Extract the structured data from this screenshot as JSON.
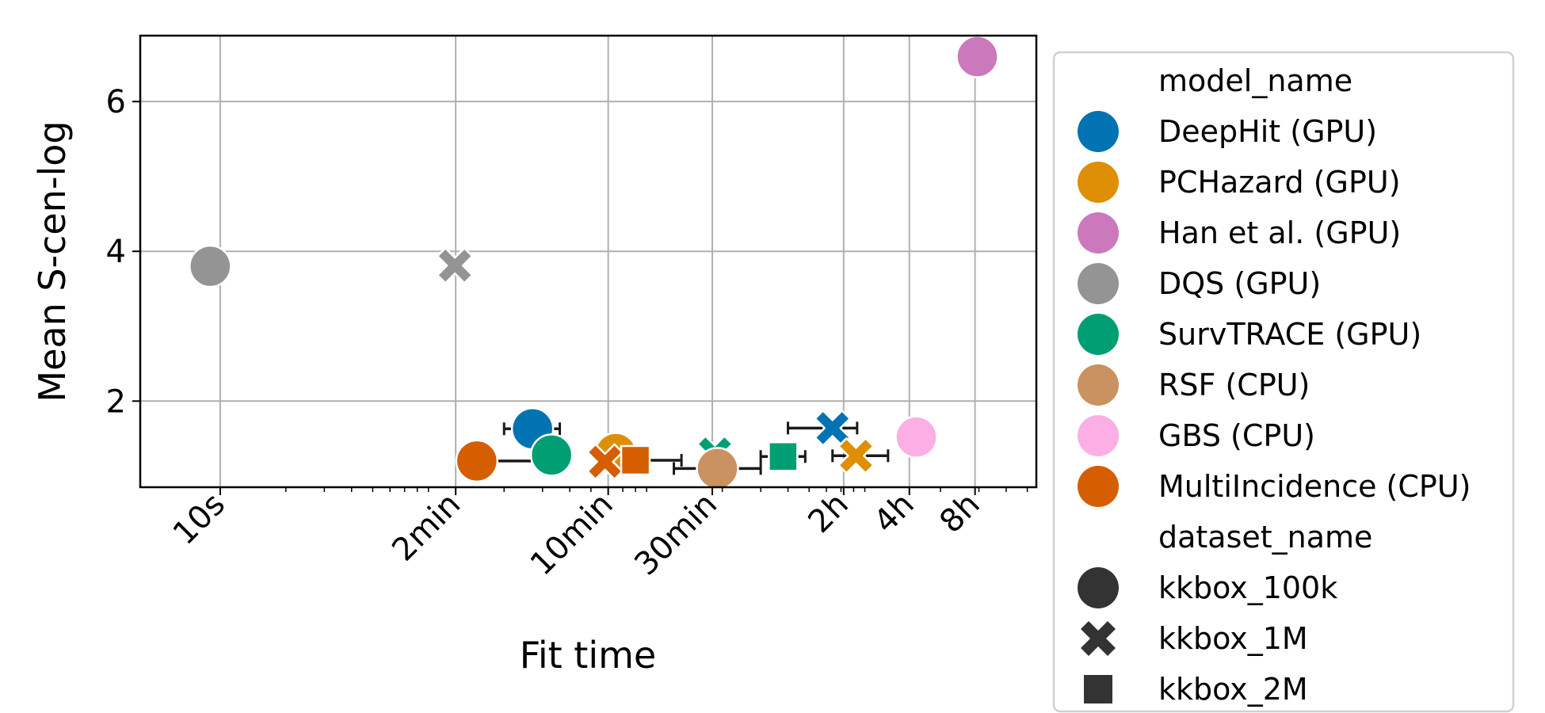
{
  "chart_data": {
    "type": "scatter",
    "title": "",
    "xlabel": "Fit time",
    "ylabel": "Mean S-cen-log",
    "x_scale": "log",
    "x_unit": "seconds",
    "xlim": [
      4.3,
      55000
    ],
    "ylim": [
      0.85,
      6.88
    ],
    "grid": true,
    "legend_position": "outside-right",
    "x_ticks": [
      {
        "value": 10,
        "label": "10s"
      },
      {
        "value": 120,
        "label": "2min"
      },
      {
        "value": 600,
        "label": "10min"
      },
      {
        "value": 1800,
        "label": "30min"
      },
      {
        "value": 7200,
        "label": "2h"
      },
      {
        "value": 14400,
        "label": "4h"
      },
      {
        "value": 28800,
        "label": "8h"
      }
    ],
    "y_ticks": [
      {
        "value": 2,
        "label": "2"
      },
      {
        "value": 4,
        "label": "4"
      },
      {
        "value": 6,
        "label": "6"
      }
    ],
    "legend": {
      "hue_title": "model_name",
      "style_title": "dataset_name",
      "models": [
        {
          "name": "DeepHit (GPU)",
          "color": "#0173b2"
        },
        {
          "name": "PCHazard (GPU)",
          "color": "#de8f05"
        },
        {
          "name": "Han et al. (GPU)",
          "color": "#cc78bc"
        },
        {
          "name": "DQS (GPU)",
          "color": "#949494"
        },
        {
          "name": "SurvTRACE (GPU)",
          "color": "#029e73"
        },
        {
          "name": "RSF (CPU)",
          "color": "#ca9161"
        },
        {
          "name": "GBS (CPU)",
          "color": "#fbafe4"
        },
        {
          "name": "MultiIncidence (CPU)",
          "color": "#d55e00"
        }
      ],
      "datasets": [
        {
          "name": "kkbox_100k",
          "marker": "circle"
        },
        {
          "name": "kkbox_1M",
          "marker": "x"
        },
        {
          "name": "kkbox_2M",
          "marker": "square"
        }
      ]
    },
    "points": [
      {
        "model": "DQS (GPU)",
        "dataset": "kkbox_100k",
        "x": 9,
        "y": 3.8
      },
      {
        "model": "DQS (GPU)",
        "dataset": "kkbox_1M",
        "x": 119,
        "y": 3.81
      },
      {
        "model": "Han et al. (GPU)",
        "dataset": "kkbox_100k",
        "x": 29500,
        "y": 6.6
      },
      {
        "model": "DeepHit (GPU)",
        "dataset": "kkbox_100k",
        "x": 270,
        "y": 1.63,
        "xerr": [
          200,
          360
        ]
      },
      {
        "model": "SurvTRACE (GPU)",
        "dataset": "kkbox_100k",
        "x": 330,
        "y": 1.28
      },
      {
        "model": "MultiIncidence (CPU)",
        "dataset": "kkbox_100k",
        "x": 150,
        "y": 1.2,
        "xerr": [
          130,
          330
        ]
      },
      {
        "model": "PCHazard (GPU)",
        "dataset": "kkbox_100k",
        "x": 650,
        "y": 1.3
      },
      {
        "model": "MultiIncidence (CPU)",
        "dataset": "kkbox_1M",
        "x": 580,
        "y": 1.19
      },
      {
        "model": "MultiIncidence (CPU)",
        "dataset": "kkbox_2M",
        "x": 800,
        "y": 1.21,
        "xerr": [
          700,
          1300
        ]
      },
      {
        "model": "SurvTRACE (GPU)",
        "dataset": "kkbox_1M",
        "x": 1850,
        "y": 1.3
      },
      {
        "model": "RSF (CPU)",
        "dataset": "kkbox_100k",
        "x": 1900,
        "y": 1.1,
        "xerr": [
          1200,
          3000
        ]
      },
      {
        "model": "SurvTRACE (GPU)",
        "dataset": "kkbox_2M",
        "x": 3800,
        "y": 1.26,
        "xerr": [
          3000,
          4800
        ]
      },
      {
        "model": "DeepHit (GPU)",
        "dataset": "kkbox_1M",
        "x": 6400,
        "y": 1.64,
        "xerr": [
          4000,
          8300
        ]
      },
      {
        "model": "PCHazard (GPU)",
        "dataset": "kkbox_1M",
        "x": 8200,
        "y": 1.27,
        "xerr": [
          6400,
          11500
        ]
      },
      {
        "model": "GBS (CPU)",
        "dataset": "kkbox_100k",
        "x": 15500,
        "y": 1.52
      }
    ]
  }
}
